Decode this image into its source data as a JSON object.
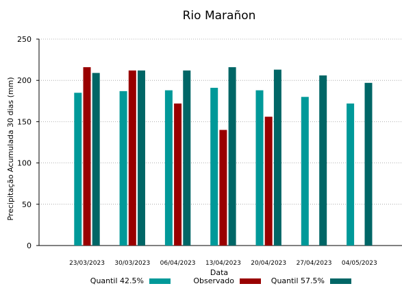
{
  "chart_data": {
    "type": "bar",
    "title": "Rio Marañon",
    "xlabel": "Data",
    "ylabel": "Precipitação Acumulada 30 dias (mm)",
    "ylim": [
      0,
      250
    ],
    "yticks": [
      0,
      50,
      100,
      150,
      200,
      250
    ],
    "grid": "horizontal-dotted",
    "legend_position": "bottom",
    "categories": [
      "23/03/2023",
      "30/03/2023",
      "06/04/2023",
      "13/04/2023",
      "20/04/2023",
      "27/04/2023",
      "04/05/2023"
    ],
    "series": [
      {
        "name": "Quantil 42.5%",
        "color": "#009999",
        "values": [
          185,
          187,
          188,
          191,
          188,
          180,
          172
        ]
      },
      {
        "name": "Observado",
        "color": "#990000",
        "values": [
          216,
          212,
          172,
          140,
          156,
          null,
          null
        ]
      },
      {
        "name": "Quantil 57.5%",
        "color": "#006666",
        "values": [
          209,
          212,
          212,
          216,
          213,
          206,
          197
        ]
      }
    ]
  }
}
